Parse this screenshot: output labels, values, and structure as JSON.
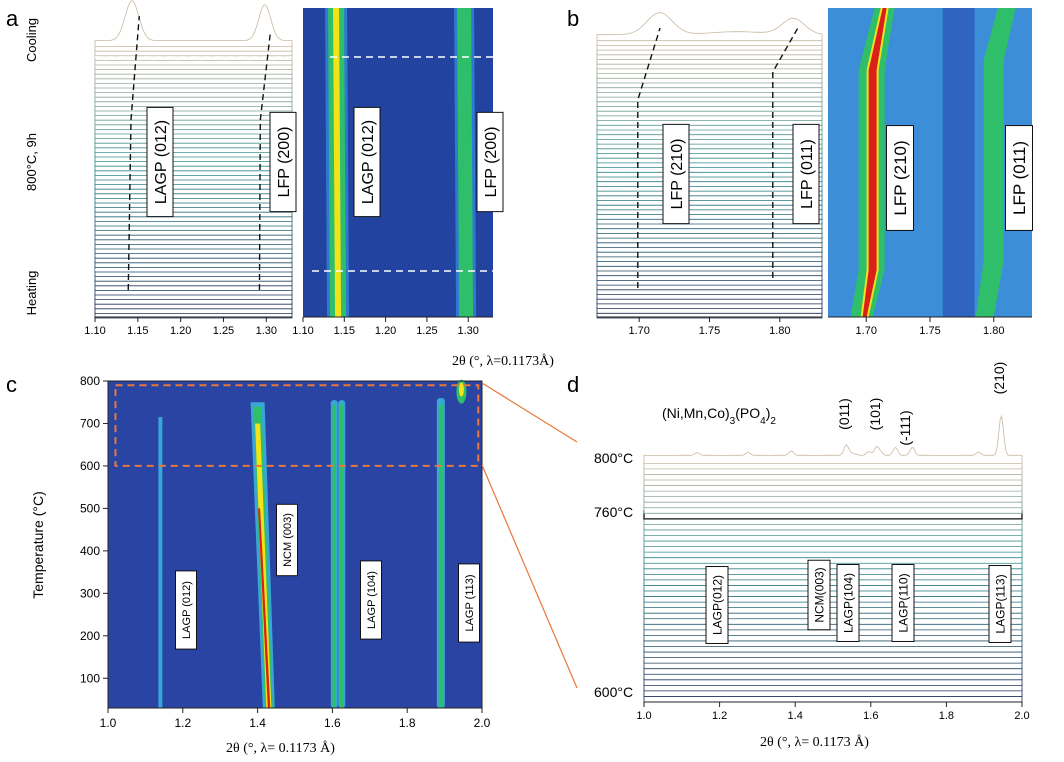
{
  "panel_letters": {
    "a": "a",
    "b": "b",
    "c": "c",
    "d": "d"
  },
  "colors": {
    "heat_low": "#1e4aa3",
    "heat_mid": "#2fbf6a",
    "heat_peak": "#f2e21a",
    "heat_hot": "#d9211b",
    "cool_trace": "#c9b9a3",
    "warm_trace": "#2d8b8b",
    "dark_trace": "#1f2a55",
    "zoom_box": "#e8773a"
  },
  "chart_data": [
    {
      "id": "a-waterfall",
      "type": "line",
      "xlim": [
        1.1,
        1.33
      ],
      "xticks": [
        "1.10",
        "1.15",
        "1.20",
        "1.25",
        "1.30"
      ],
      "side_labels": [
        "Cooling",
        "800°C, 9h",
        "Heating"
      ],
      "peaks": [
        {
          "label": "LAGP (012)",
          "x": 1.14
        },
        {
          "label": "LFP (200)",
          "x": 1.295
        }
      ]
    },
    {
      "id": "a-heatmap",
      "type": "heatmap",
      "xlim": [
        1.1,
        1.33
      ],
      "xticks": [
        "1.10",
        "1.15",
        "1.20",
        "1.25",
        "1.30"
      ],
      "peaks": [
        {
          "label": "LAGP (012)",
          "x": 1.14
        },
        {
          "label": "LFP (200)",
          "x": 1.295
        }
      ]
    },
    {
      "id": "b-waterfall",
      "type": "line",
      "xlim": [
        1.67,
        1.83
      ],
      "xticks": [
        "1.70",
        "1.75",
        "1.80"
      ],
      "peaks": [
        {
          "label": "LFP (210)",
          "x": 1.705
        },
        {
          "label": "LFP (011)",
          "x": 1.8
        }
      ]
    },
    {
      "id": "b-heatmap",
      "type": "heatmap",
      "xlim": [
        1.67,
        1.83
      ],
      "xticks": [
        "1.70",
        "1.75",
        "1.80"
      ],
      "peaks": [
        {
          "label": "LFP (210)",
          "x": 1.705
        },
        {
          "label": "LFP (011)",
          "x": 1.8
        }
      ]
    },
    {
      "id": "ab-shared-axis",
      "xlabel": "2θ (°, λ=0.1173Å)"
    },
    {
      "id": "c-heatmap",
      "type": "heatmap",
      "xlim": [
        1.0,
        2.0
      ],
      "ylim": [
        30,
        800
      ],
      "xticks": [
        "1.0",
        "1.2",
        "1.4",
        "1.6",
        "1.8",
        "2.0"
      ],
      "yticks": [
        "100",
        "200",
        "300",
        "400",
        "500",
        "600",
        "700",
        "800"
      ],
      "xlabel": "2θ (°, λ= 0.1173 Å)",
      "ylabel": "Temperature (°C)",
      "peaks": [
        {
          "label": "LAGP (012)",
          "x": 1.14
        },
        {
          "label": "NCM (003)",
          "x": 1.41
        },
        {
          "label": "LAGP (104)",
          "x": 1.615
        },
        {
          "label": "LAGP (113)",
          "x": 1.89
        }
      ],
      "zoom_box": {
        "x": [
          1.02,
          1.99
        ],
        "y": [
          600,
          790
        ]
      }
    },
    {
      "id": "d-waterfall",
      "type": "line",
      "xlim": [
        1.0,
        2.0
      ],
      "xticks": [
        "1.0",
        "1.2",
        "1.4",
        "1.6",
        "1.8",
        "2.0"
      ],
      "xlabel": "2θ (°, λ= 0.1173 Å)",
      "temperature_labels": [
        "800°C",
        "760°C",
        "600°C"
      ],
      "phase_label": "(Ni,Mn,Co)3(PO4)2",
      "phase_peaks": [
        {
          "label": "(011)",
          "x": 1.535
        },
        {
          "label": "(101)",
          "x": 1.615
        },
        {
          "label": "(-111)",
          "x": 1.7
        },
        {
          "label": "(210)",
          "x": 1.945
        }
      ],
      "peaks": [
        {
          "label": "LAGP(012)",
          "x": 1.14
        },
        {
          "label": "NCM(003)",
          "x": 1.39
        },
        {
          "label": "LAGP(104)",
          "x": 1.595
        },
        {
          "label": "LAGP(110)",
          "x": 1.625
        },
        {
          "label": "LAGP(113)",
          "x": 1.885
        }
      ]
    }
  ]
}
